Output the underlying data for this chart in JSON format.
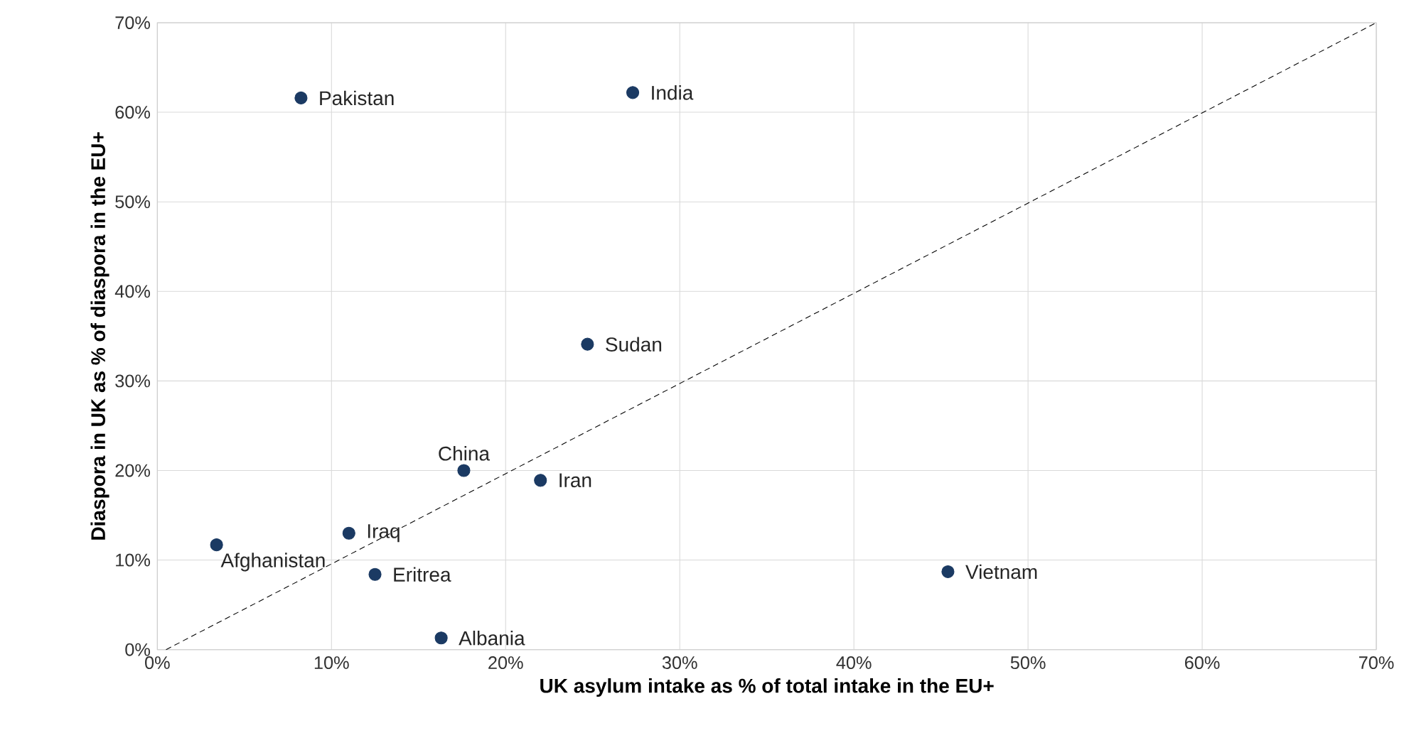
{
  "chart_data": {
    "type": "scatter",
    "xlabel": "UK asylum intake as % of total intake in the EU+",
    "ylabel": "Diaspora in UK as % of diaspora in the EU+",
    "x": [
      8.25,
      27.3,
      24.7,
      17.6,
      22.0,
      11.0,
      3.4,
      12.5,
      16.3,
      45.4
    ],
    "series": [
      {
        "color": "#1b3a63",
        "values": [
          61.6,
          62.2,
          34.1,
          20.0,
          18.9,
          13.0,
          11.7,
          8.4,
          1.3,
          8.7
        ],
        "marker": "circle"
      },
      {
        "type": "line",
        "color": "#000000",
        "line_style": "dashed",
        "marker": "none",
        "x": [
          0.5,
          70
        ],
        "values": [
          0,
          70
        ]
      }
    ],
    "annotations": [
      {
        "text": "Pakistan",
        "x": 8.25,
        "y": 61.6
      },
      {
        "text": "India",
        "x": 27.3,
        "y": 62.2
      },
      {
        "text": "Sudan",
        "x": 24.7,
        "y": 34.1
      },
      {
        "text": "China",
        "x": 17.6,
        "y": 20.0
      },
      {
        "text": "Iran",
        "x": 22.0,
        "y": 18.9
      },
      {
        "text": "Iraq",
        "x": 11.0,
        "y": 13.0
      },
      {
        "text": "Afghanistan",
        "x": 3.4,
        "y": 11.7
      },
      {
        "text": "Eritrea",
        "x": 12.5,
        "y": 8.4
      },
      {
        "text": "Albania",
        "x": 16.3,
        "y": 1.3
      },
      {
        "text": "Vietnam",
        "x": 45.4,
        "y": 8.7
      }
    ],
    "xlim": [
      0,
      70
    ],
    "xticks": [
      {
        "value": 0,
        "label": "0%"
      },
      {
        "value": 10,
        "label": "10%"
      },
      {
        "value": 20,
        "label": "20%"
      },
      {
        "value": 30,
        "label": "30%"
      },
      {
        "value": 40,
        "label": "40%"
      },
      {
        "value": 50,
        "label": "50%"
      },
      {
        "value": 60,
        "label": "60%"
      },
      {
        "value": 70,
        "label": "70%"
      }
    ],
    "ylim": [
      0,
      70
    ],
    "yticks": [
      {
        "value": 0,
        "label": "0%"
      },
      {
        "value": 10,
        "label": "10%"
      },
      {
        "value": 20,
        "label": "20%"
      },
      {
        "value": 30,
        "label": "30%"
      },
      {
        "value": 40,
        "label": "40%"
      },
      {
        "value": 50,
        "label": "50%"
      },
      {
        "value": 60,
        "label": "60%"
      },
      {
        "value": 70,
        "label": "70%"
      }
    ],
    "grid": true
  }
}
